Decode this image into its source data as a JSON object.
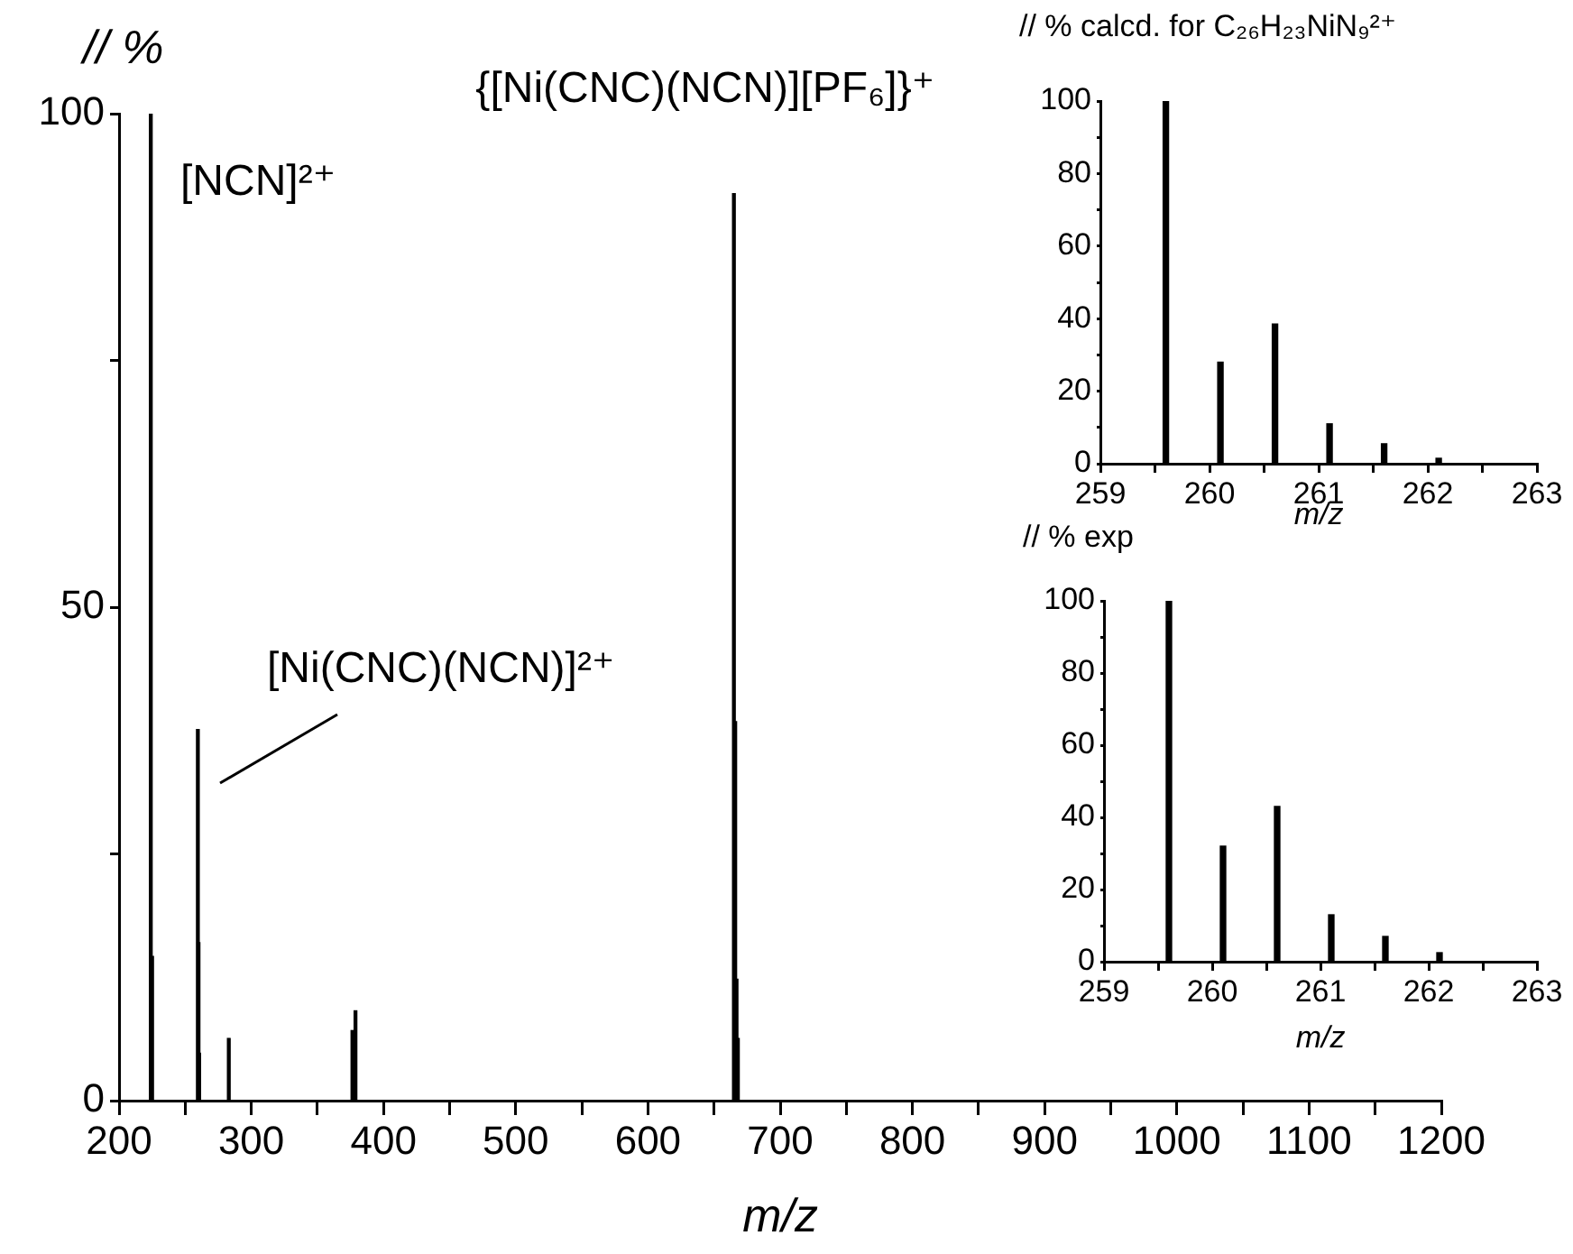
{
  "chart_data": [
    {
      "type": "bar",
      "xlabel": "m/z",
      "ylabel": "// %",
      "color": "#000000",
      "x": [
        224,
        225,
        259.6,
        260.1,
        260.6,
        283,
        376.5,
        378.8,
        665,
        666,
        667,
        668
      ],
      "values": [
        100,
        14.6,
        37.6,
        16,
        4.8,
        6.3,
        7.1,
        9.1,
        91.9,
        38.4,
        12.3,
        6.3
      ],
      "xlim": [
        200,
        1200
      ],
      "ylim": [
        0,
        100
      ],
      "xticks": [
        200,
        {
          "value": 250,
          "label": null
        },
        300,
        {
          "value": 350,
          "label": null
        },
        400,
        {
          "value": 450,
          "label": null
        },
        500,
        {
          "value": 550,
          "label": null
        },
        600,
        {
          "value": 650,
          "label": null
        },
        700,
        {
          "value": 750,
          "label": null
        },
        800,
        {
          "value": 850,
          "label": null
        },
        900,
        {
          "value": 950,
          "label": null
        },
        1000,
        {
          "value": 1050,
          "label": null
        },
        1100,
        {
          "value": 1150,
          "label": null
        },
        1200
      ],
      "yticks": [
        0,
        {
          "value": 25,
          "label": null
        },
        50,
        {
          "value": 75,
          "label": null
        },
        100
      ],
      "annotations": [
        "[NCN]²⁺",
        {
          "text": "{[Ni(CNC)(NCN)][PF₆]}⁺",
          "x": 665,
          "y": 91.9
        },
        "[Ni(CNC)(NCN)]²⁺"
      ]
    },
    {
      "type": "bar",
      "xlabel": "m/z",
      "ylabel": "// % calcd. for C₂₆H₂₃NiN₉²⁺",
      "color": "#000000",
      "x": [
        259.6,
        260.1,
        260.6,
        261.1,
        261.6,
        262.1
      ],
      "values": [
        100,
        28,
        38.5,
        11,
        5.5,
        1.5
      ],
      "xlim": [
        259,
        263
      ],
      "ylim": [
        0,
        100
      ],
      "xticks": [
        259,
        {
          "value": 259.5,
          "label": null
        },
        260,
        {
          "value": 260.5,
          "label": null
        },
        261,
        {
          "value": 261.5,
          "label": null
        },
        262,
        {
          "value": 262.5,
          "label": null
        },
        263
      ],
      "yticks": [
        0,
        {
          "value": 10,
          "label": null
        },
        20,
        {
          "value": 30,
          "label": null
        },
        40,
        {
          "value": 50,
          "label": null
        },
        60,
        {
          "value": 70,
          "label": null
        },
        80,
        {
          "value": 90,
          "label": null
        },
        100
      ]
    },
    {
      "type": "bar",
      "xlabel": "m/z",
      "ylabel": "// % exp",
      "color": "#000000",
      "x": [
        259.6,
        260.1,
        260.6,
        261.1,
        261.6,
        262.1
      ],
      "values": [
        100,
        32,
        43,
        13,
        7,
        2.5
      ],
      "xlim": [
        259,
        263
      ],
      "ylim": [
        0,
        100
      ],
      "xticks": [
        259,
        {
          "value": 259.5,
          "label": null
        },
        260,
        {
          "value": 260.5,
          "label": null
        },
        261,
        {
          "value": 261.5,
          "label": null
        },
        262,
        {
          "value": 262.5,
          "label": null
        },
        263
      ],
      "yticks": [
        0,
        {
          "value": 10,
          "label": null
        },
        20,
        {
          "value": 30,
          "label": null
        },
        40,
        {
          "value": 50,
          "label": null
        },
        60,
        {
          "value": 70,
          "label": null
        },
        80,
        {
          "value": 90,
          "label": null
        },
        100
      ]
    }
  ]
}
